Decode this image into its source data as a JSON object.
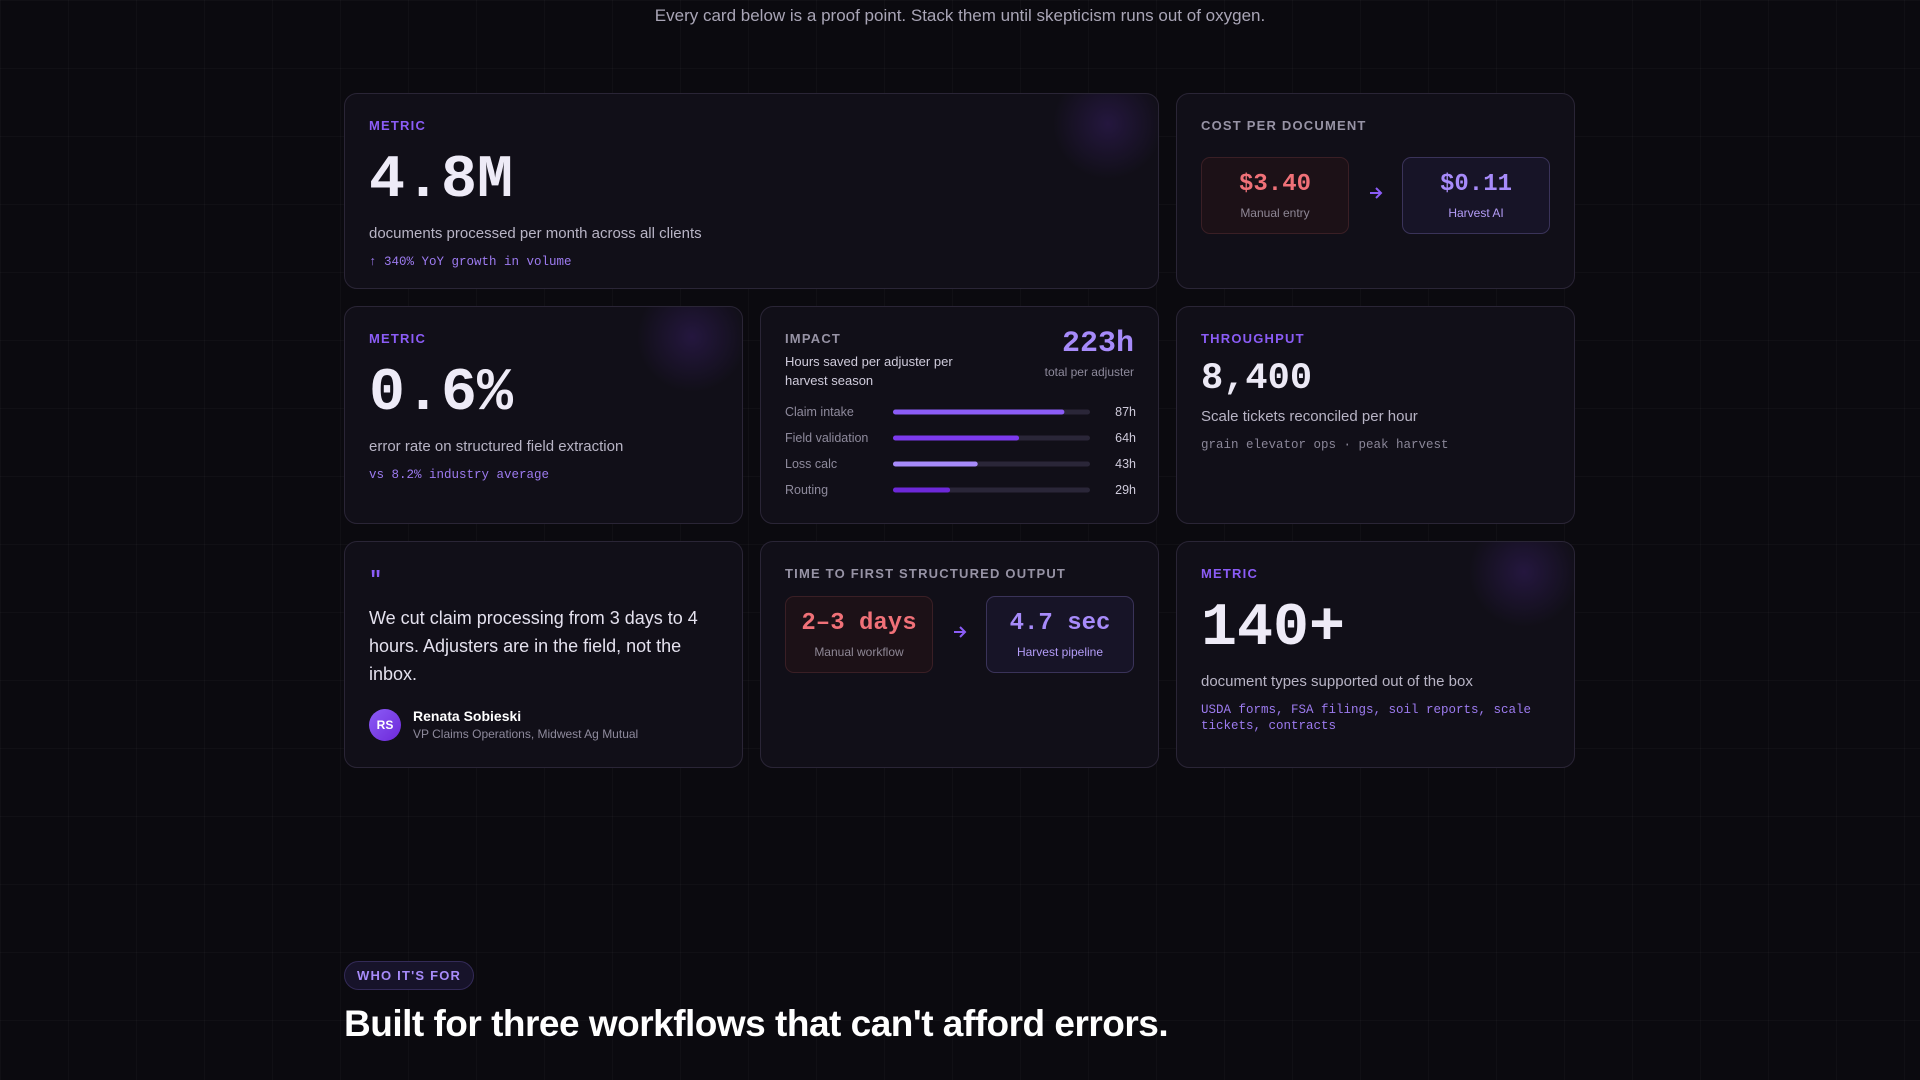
{
  "intro": "Every card below is a proof point. Stack them until skepticism runs out of oxygen.",
  "cards": {
    "volume": {
      "kicker": "METRIC",
      "value": "4.8M",
      "desc": "documents processed per month across all clients",
      "note": "↑ 340% YoY growth in volume"
    },
    "cost": {
      "kicker": "COST PER DOCUMENT",
      "before": {
        "value": "$3.40",
        "label": "Manual entry"
      },
      "after": {
        "value": "$0.11",
        "label": "Harvest AI"
      }
    },
    "error": {
      "kicker": "METRIC",
      "value": "0.6%",
      "desc": "error rate on structured field extraction",
      "note": "vs 8.2% industry average"
    },
    "impact": {
      "kicker": "IMPACT",
      "desc": "Hours saved per adjuster per harvest season",
      "total": "223h",
      "total_label": "total per adjuster",
      "chart_data": {
        "type": "bar",
        "orientation": "horizontal",
        "categories": [
          "Claim intake",
          "Field validation",
          "Loss calc",
          "Routing"
        ],
        "values": [
          87,
          64,
          43,
          29
        ],
        "value_labels": [
          "87h",
          "64h",
          "43h",
          "29h"
        ],
        "xlim": [
          0,
          100
        ],
        "colors": [
          "#8b5cf6",
          "#7c3aed",
          "#a78bfa",
          "#6d28d9"
        ]
      }
    },
    "throughput": {
      "kicker": "THROUGHPUT",
      "value": "8,400",
      "desc": "Scale tickets reconciled per hour",
      "note": "grain elevator ops · peak harvest"
    },
    "quote": {
      "mark": "\"",
      "text": "We cut claim processing from 3 days to 4 hours. Adjusters are in the field, not the inbox.",
      "initials": "RS",
      "name": "Renata Sobieski",
      "role": "VP Claims Operations, Midwest Ag Mutual"
    },
    "time": {
      "kicker": "TIME TO FIRST STRUCTURED OUTPUT",
      "before": {
        "value": "2–3 days",
        "label": "Manual workflow"
      },
      "after": {
        "value": "4.7 sec",
        "label": "Harvest pipeline"
      }
    },
    "types": {
      "kicker": "METRIC",
      "value": "140+",
      "desc": "document types supported out of the box",
      "note": "USDA forms, FSA filings, soil reports, scale tickets, contracts"
    }
  },
  "section": {
    "pill": "WHO IT'S FOR",
    "heading": "Built for three workflows that can't afford errors."
  }
}
